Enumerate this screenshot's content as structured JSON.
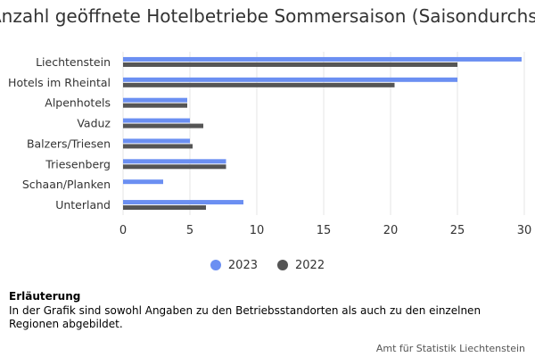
{
  "chart_data": {
    "type": "bar",
    "orientation": "horizontal",
    "title": "Anzahl geöffnete Hotelbetriebe Sommersaison (Saisondurchschnitt)",
    "categories": [
      "Liechtenstein",
      "Hotels im Rheintal",
      "Alpenhotels",
      "Vaduz",
      "Balzers/Triesen",
      "Triesenberg",
      "Schaan/Planken",
      "Unterland"
    ],
    "series": [
      {
        "name": "2023",
        "color": "#6b8ff2",
        "values": [
          29.8,
          25.0,
          4.8,
          5.0,
          5.0,
          7.7,
          3.0,
          9.0
        ]
      },
      {
        "name": "2022",
        "color": "#555555",
        "values": [
          25.0,
          20.3,
          4.8,
          6.0,
          5.2,
          7.7,
          null,
          6.2
        ]
      }
    ],
    "xlim": [
      0,
      30
    ],
    "xticks": [
      "0",
      "5",
      "10",
      "15",
      "20",
      "25",
      "30"
    ],
    "grid": true,
    "legend_position": "bottom"
  },
  "note": {
    "heading": "Erläuterung",
    "text": "In der Grafik sind sowohl Angaben zu den Betriebsstandorten als auch zu den einzelnen Regionen abgebildet."
  },
  "source": "Amt für Statistik Liechtenstein"
}
